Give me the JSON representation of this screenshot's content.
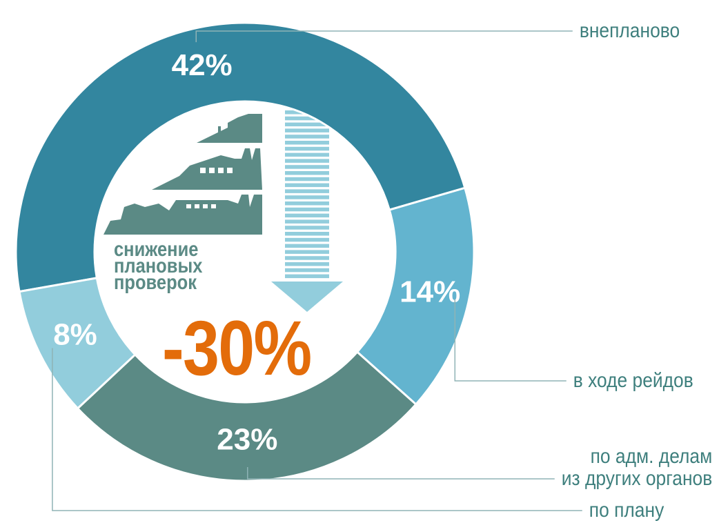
{
  "chart_data": {
    "type": "pie",
    "donut": true,
    "categories": [
      "внепланово",
      "в ходе рейдов",
      "по адм. делам\nиз других органов",
      "по плану"
    ],
    "values": [
      42,
      14,
      23,
      8
    ],
    "value_labels": [
      "42%",
      "14%",
      "23%",
      "8%"
    ],
    "colors": [
      "#33869f",
      "#63b4cf",
      "#5b8a85",
      "#92cddc"
    ],
    "annotations": [
      "снижение",
      "плановых",
      "проверок",
      "-30%"
    ]
  }
}
